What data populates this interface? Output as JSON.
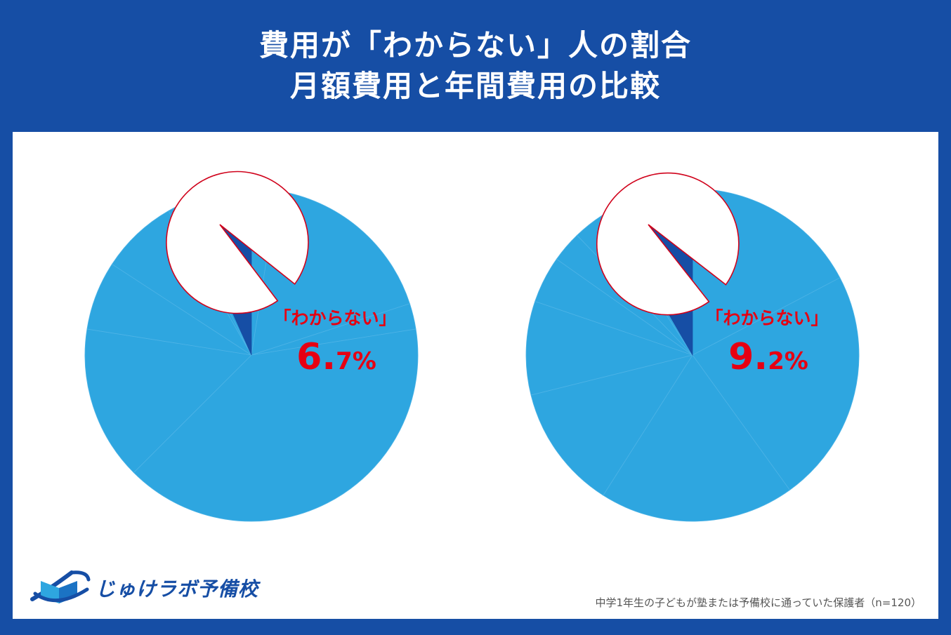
{
  "header": {
    "title_line1": "費用が「わからない」人の割合",
    "title_line2": "月額費用と年間費用の比較"
  },
  "colors": {
    "background": "#164ea5",
    "slice": "#2ea6e0",
    "highlight_slice": "#164ea5",
    "callout_text": "#e60012",
    "callout_border": "#d0021b",
    "panel": "#ffffff"
  },
  "chart_data": [
    {
      "type": "pie",
      "callout_label": "「わからない」",
      "callout_value_big": "6.",
      "callout_value_small": "7%",
      "highlight_value": 6.7,
      "slices": [
        2.5,
        17.5,
        2.5,
        40.0,
        15.0,
        6.7,
        7.5,
        0.8,
        0.8,
        6.7
      ]
    },
    {
      "type": "pie",
      "callout_label": "「わからない」",
      "callout_value_big": "9.",
      "callout_value_small": "2%",
      "highlight_value": 9.2,
      "slices": [
        19.0,
        25.0,
        20.8,
        13.3,
        10.0,
        5.0,
        3.3,
        3.3,
        0.8,
        0.1,
        9.2
      ]
    }
  ],
  "logo": {
    "text": "じゅけラボ予備校",
    "icon": "open-book-icon"
  },
  "note": "中学1年生の子どもが塾または予備校に通っていた保護者（n=120）"
}
